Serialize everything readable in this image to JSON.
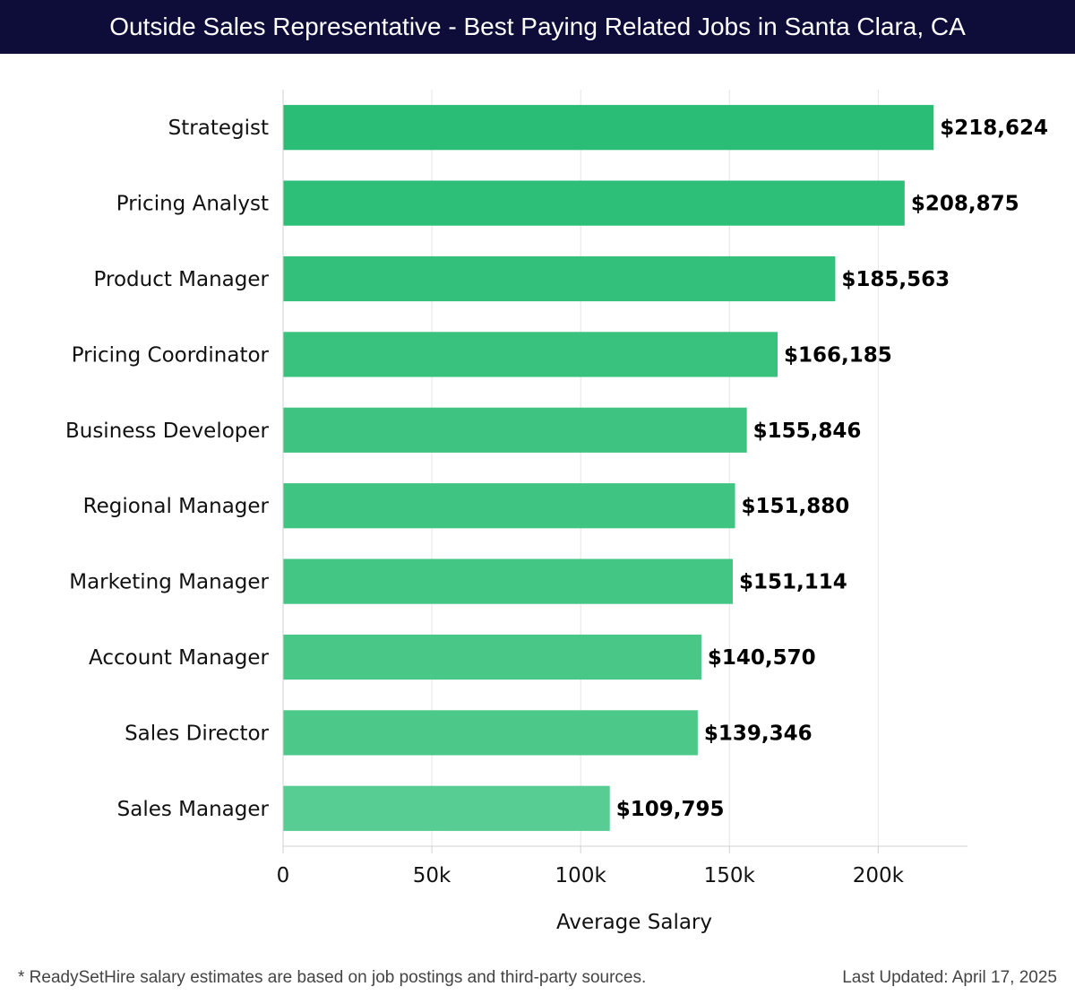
{
  "header": {
    "title": "Outside Sales Representative - Best Paying Related Jobs in Santa Clara, CA"
  },
  "chart_data": {
    "type": "bar",
    "orientation": "horizontal",
    "categories": [
      "Strategist",
      "Pricing Analyst",
      "Product Manager",
      "Pricing Coordinator",
      "Business Developer",
      "Regional Manager",
      "Marketing Manager",
      "Account Manager",
      "Sales Director",
      "Sales Manager"
    ],
    "values": [
      218624,
      208875,
      185563,
      166185,
      155846,
      151880,
      151114,
      140570,
      139346,
      109795
    ],
    "value_labels": [
      "$218,624",
      "$208,875",
      "$185,563",
      "$166,185",
      "$155,846",
      "$151,880",
      "$151,114",
      "$140,570",
      "$139,346",
      "$109,795"
    ],
    "xlabel": "Average Salary",
    "ylabel": "",
    "xlim": [
      0,
      230000
    ],
    "ticks": [
      0,
      50000,
      100000,
      150000,
      200000
    ],
    "tick_labels": [
      "0",
      "50k",
      "100k",
      "150k",
      "200k"
    ],
    "grid": true,
    "bar_colors": [
      "#29bd75",
      "#2dbf77",
      "#33c07a",
      "#38c27d",
      "#3ec480",
      "#40c482",
      "#43c583",
      "#48c786",
      "#4cc889",
      "#57cc93"
    ]
  },
  "footer": {
    "note": "* ReadySetHire salary estimates are based on job postings and third-party sources.",
    "updated": "Last Updated: April 17, 2025"
  }
}
